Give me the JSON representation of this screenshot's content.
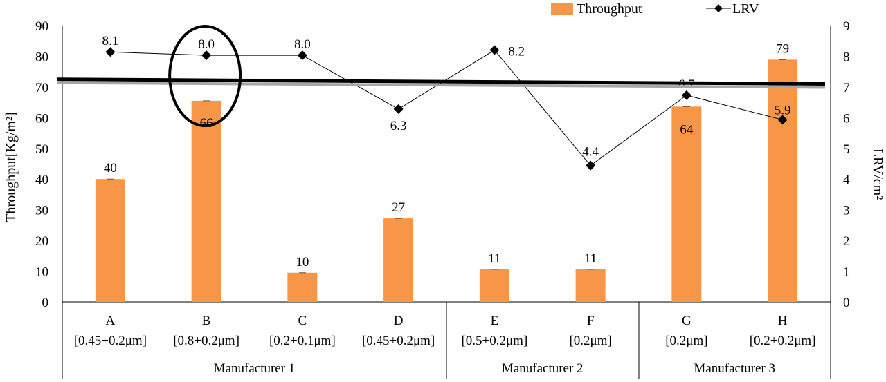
{
  "chart_data": {
    "type": "bar",
    "categories": [
      "A",
      "B",
      "C",
      "D",
      "E",
      "F",
      "G",
      "H"
    ],
    "subcategories": [
      "[0.45+0.2μm]",
      "[0.8+0.2μm]",
      "[0.2+0.1μm]",
      "[0.45+0.2μm]",
      "[0.5+0.2μm]",
      "[0.2μm]",
      "[0.2μm]",
      "[0.2+0.2μm]"
    ],
    "groups": [
      {
        "label": "Manufacturer 1",
        "start": 0,
        "end": 3
      },
      {
        "label": "Manufacturer 2",
        "start": 4,
        "end": 5
      },
      {
        "label": "Manufacturer 3",
        "start": 6,
        "end": 7
      }
    ],
    "series": [
      {
        "name": "Throughput",
        "type": "bar",
        "axis": "left",
        "values": [
          40,
          65.5,
          9.5,
          27.2,
          10.6,
          10.6,
          63.6,
          78.9
        ],
        "labels": [
          "40",
          "66",
          "10",
          "27",
          "11",
          "11",
          "64",
          "79"
        ],
        "color": "#f79646"
      },
      {
        "name": "LRV",
        "type": "line",
        "axis": "right",
        "marker": "diamond",
        "values": [
          8.14,
          8.03,
          8.03,
          6.28,
          8.2,
          4.44,
          6.73,
          5.93
        ],
        "labels": [
          "8.1",
          "8.0",
          "8.0",
          "6.3",
          "8.2",
          "4.4",
          "6.7",
          "5.9"
        ],
        "color": "#000000"
      }
    ],
    "ylabel": "Throughput[Kg/m²]",
    "y2label": "LRV/cm²",
    "ylim": [
      0,
      90
    ],
    "y2lim": [
      0,
      9
    ],
    "yticks": [
      "0",
      "10",
      "20",
      "30",
      "40",
      "50",
      "60",
      "70",
      "80",
      "90"
    ],
    "y2ticks": [
      "0",
      "1",
      "2",
      "3",
      "4",
      "5",
      "6",
      "7",
      "8",
      "9"
    ],
    "reference_line": {
      "y2_start": 7.25,
      "y2_end": 7.1
    },
    "highlight_category": "B",
    "legend_position": "top-right",
    "grid": false
  }
}
